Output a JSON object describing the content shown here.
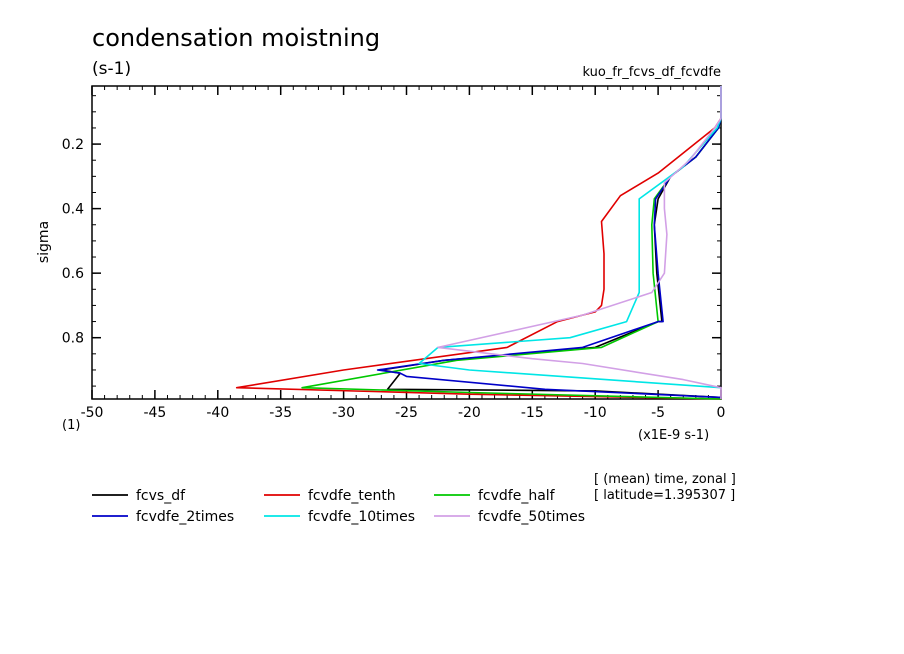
{
  "chart_data": {
    "type": "line",
    "title": "condensation moistning",
    "units": "(s-1)",
    "experiment": "kuo_fr_fcvs_df_fcvdfe",
    "ylabel": "sigma",
    "x_units_label": "(x1E-9 s-1)",
    "x_corner_label": "(1)",
    "xlim": [
      -50,
      0
    ],
    "ylim": [
      0.02,
      0.99
    ],
    "y_inverted": true,
    "x_ticks": [
      -50,
      -45,
      -40,
      -35,
      -30,
      -25,
      -20,
      -15,
      -10,
      -5,
      0
    ],
    "x_tick_labels": [
      "-50",
      "-45",
      "-40",
      "-35",
      "-30",
      "-25",
      "-20",
      "-15",
      "-10",
      "-5",
      "0"
    ],
    "y_ticks": [
      0.2,
      0.4,
      0.6,
      0.8
    ],
    "y_tick_labels": [
      "0.2",
      "0.4",
      "0.6",
      "0.8"
    ],
    "annotation_lines": [
      "[ (mean) time, zonal ]",
      "[ latitude=1.395307 ]"
    ],
    "series": [
      {
        "name": "fcvs_df",
        "color": "#000000",
        "x": [
          0,
          0,
          -0.2,
          -2,
          -4,
          -5,
          -5.3,
          -5.1,
          -4.7,
          -4.7,
          -5,
          -10,
          -22,
          -27,
          -25.5,
          -26.5,
          -10,
          0,
          0
        ],
        "y": [
          0.02,
          0.12,
          0.15,
          0.24,
          0.3,
          0.37,
          0.45,
          0.6,
          0.75,
          0.75,
          0.75,
          0.83,
          0.87,
          0.9,
          0.91,
          0.96,
          0.965,
          0.985,
          0.99
        ]
      },
      {
        "name": "fcvdfe_tenth",
        "color": "#e00000",
        "x": [
          0,
          0,
          -0.5,
          -5,
          -8,
          -9.5,
          -9.3,
          -9.3,
          -9.5,
          -10,
          -13,
          -17,
          -30,
          -38.5,
          -20,
          0
        ],
        "y": [
          0.02,
          0.12,
          0.15,
          0.29,
          0.36,
          0.44,
          0.54,
          0.65,
          0.7,
          0.72,
          0.75,
          0.83,
          0.9,
          0.955,
          0.975,
          0.99
        ]
      },
      {
        "name": "fcvdfe_half",
        "color": "#00c800",
        "x": [
          0,
          0,
          -0.2,
          -2,
          -4,
          -5.3,
          -5.5,
          -5.4,
          -5,
          -5,
          -9.5,
          -21,
          -33.3,
          -20,
          0
        ],
        "y": [
          0.02,
          0.12,
          0.15,
          0.24,
          0.3,
          0.37,
          0.45,
          0.6,
          0.75,
          0.75,
          0.83,
          0.87,
          0.955,
          0.97,
          0.99
        ]
      },
      {
        "name": "fcvdfe_2times",
        "color": "#0000c8",
        "x": [
          0,
          0,
          -0.2,
          -2,
          -4,
          -5.2,
          -5.3,
          -5,
          -4.6,
          -4.6,
          -5,
          -11,
          -22,
          -27.3,
          -25.5,
          -25,
          -14,
          0
        ],
        "y": [
          0.02,
          0.12,
          0.15,
          0.24,
          0.3,
          0.37,
          0.45,
          0.6,
          0.75,
          0.75,
          0.75,
          0.83,
          0.87,
          0.9,
          0.91,
          0.92,
          0.96,
          0.985
        ]
      },
      {
        "name": "fcvdfe_10times",
        "color": "#00e6e6",
        "x": [
          0,
          0,
          -0.3,
          -3,
          -6.5,
          -6.5,
          -6.5,
          -6.5,
          -7.5,
          -12,
          -22.5,
          -24,
          -20,
          0
        ],
        "y": [
          0.02,
          0.12,
          0.15,
          0.27,
          0.37,
          0.44,
          0.6,
          0.66,
          0.75,
          0.8,
          0.83,
          0.88,
          0.9,
          0.955
        ]
      },
      {
        "name": "fcvdfe_50times",
        "color": "#d2a0e6",
        "x": [
          0,
          0,
          -0.5,
          -2.5,
          -4.5,
          -4.5,
          -4.3,
          -4.5,
          -5.5,
          -11,
          -22.5,
          -15,
          -11,
          -3,
          0,
          0
        ],
        "y": [
          0.02,
          0.12,
          0.15,
          0.25,
          0.32,
          0.4,
          0.48,
          0.6,
          0.66,
          0.73,
          0.83,
          0.865,
          0.88,
          0.93,
          0.955,
          0.99
        ]
      }
    ]
  }
}
